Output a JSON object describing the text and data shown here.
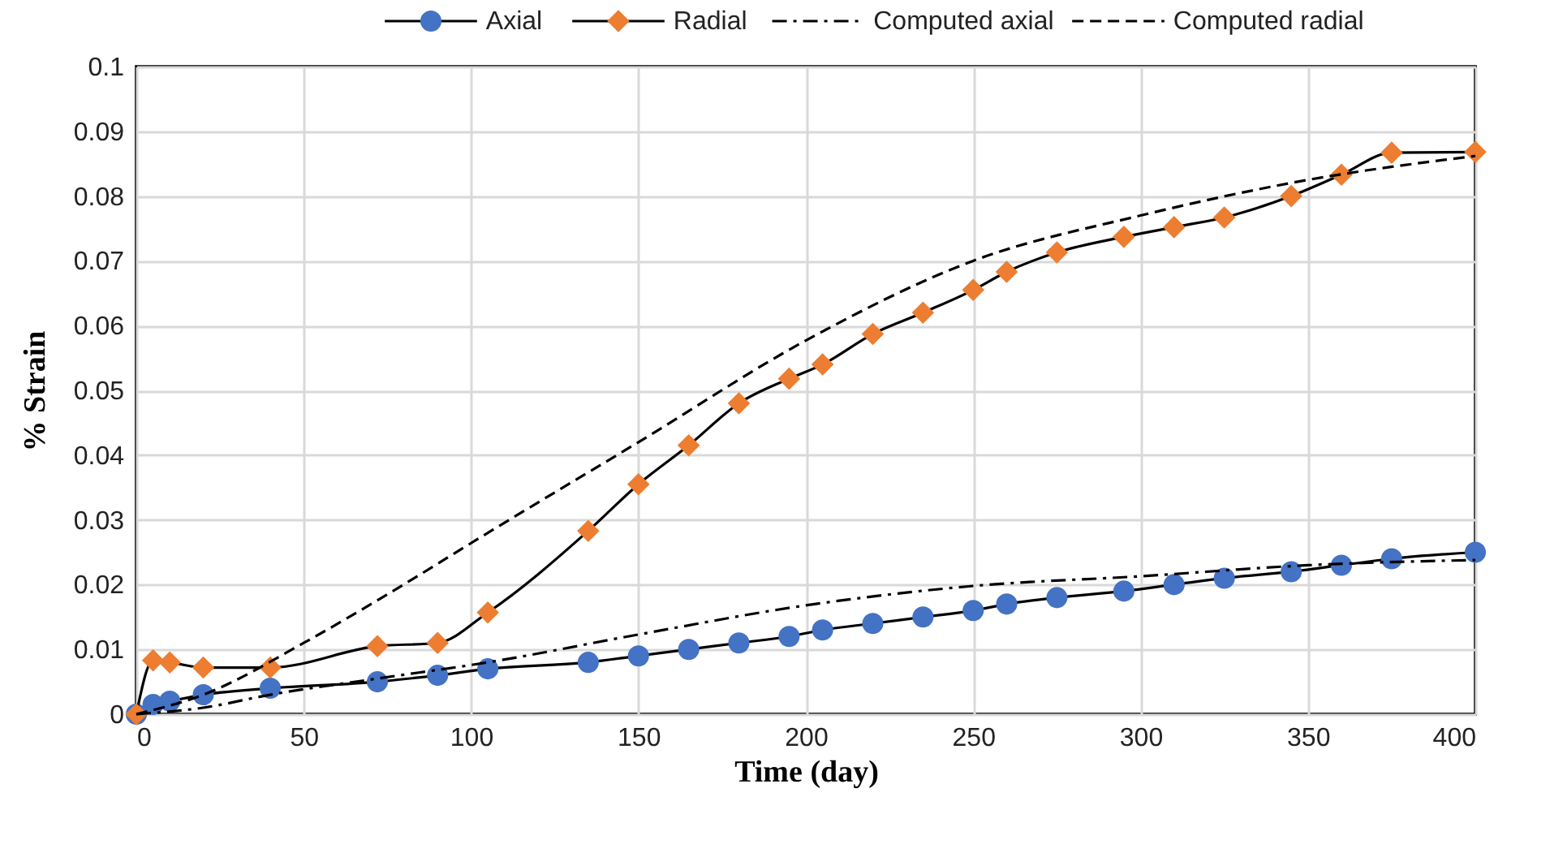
{
  "chart_data": {
    "type": "line",
    "xlabel": "Time (day)",
    "ylabel": "% Strain",
    "xlim": [
      0,
      400
    ],
    "xticks": [
      0,
      50,
      100,
      150,
      200,
      250,
      300,
      350,
      400
    ],
    "ylim": [
      0,
      0.1
    ],
    "yticks": [
      0,
      0.01,
      0.02,
      0.03,
      0.04,
      0.05,
      0.06,
      0.07,
      0.08,
      0.09,
      0.1
    ],
    "grid": true,
    "legend": "top right",
    "series": [
      {
        "name": "Axial",
        "color": "#4472c4",
        "marker": "circle",
        "line_style": "solid",
        "x": [
          0,
          5,
          10,
          20,
          40,
          72,
          90,
          105,
          135,
          150,
          165,
          180,
          195,
          205,
          220,
          235,
          250,
          260,
          275,
          295,
          310,
          325,
          345,
          360,
          375,
          400
        ],
        "values": [
          0,
          0.0015,
          0.002,
          0.003,
          0.004,
          0.005,
          0.006,
          0.007,
          0.008,
          0.009,
          0.01,
          0.011,
          0.012,
          0.013,
          0.014,
          0.015,
          0.016,
          0.017,
          0.018,
          0.019,
          0.02,
          0.021,
          0.022,
          0.023,
          0.024,
          0.025
        ]
      },
      {
        "name": "Radial",
        "color": "#ed7d31",
        "marker": "diamond",
        "line_style": "solid",
        "x": [
          0,
          5,
          10,
          20,
          40,
          72,
          90,
          105,
          135,
          150,
          165,
          180,
          195,
          205,
          220,
          235,
          250,
          260,
          275,
          295,
          310,
          325,
          345,
          360,
          375,
          400
        ],
        "values": [
          0,
          0.0083,
          0.008,
          0.0072,
          0.0072,
          0.0105,
          0.011,
          0.0157,
          0.0283,
          0.0355,
          0.0415,
          0.048,
          0.0518,
          0.054,
          0.0587,
          0.062,
          0.0655,
          0.0683,
          0.0713,
          0.0737,
          0.0752,
          0.0767,
          0.08,
          0.0833,
          0.0867,
          0.0868
        ]
      },
      {
        "name": "Computed axial",
        "color": "#000000",
        "marker": "none",
        "line_style": "dashdot",
        "x": [
          0,
          20,
          40,
          72,
          105,
          150,
          200,
          250,
          300,
          350,
          400
        ],
        "values": [
          0,
          0.001,
          0.003,
          0.0055,
          0.008,
          0.0123,
          0.0168,
          0.0198,
          0.0213,
          0.023,
          0.0238
        ]
      },
      {
        "name": "Computed radial",
        "color": "#000000",
        "marker": "none",
        "line_style": "dashed",
        "x": [
          0,
          20,
          50,
          75,
          105,
          150,
          200,
          250,
          300,
          350,
          400
        ],
        "values": [
          0,
          0.003,
          0.011,
          0.0185,
          0.028,
          0.042,
          0.0577,
          0.07,
          0.077,
          0.0825,
          0.0862
        ]
      }
    ]
  }
}
